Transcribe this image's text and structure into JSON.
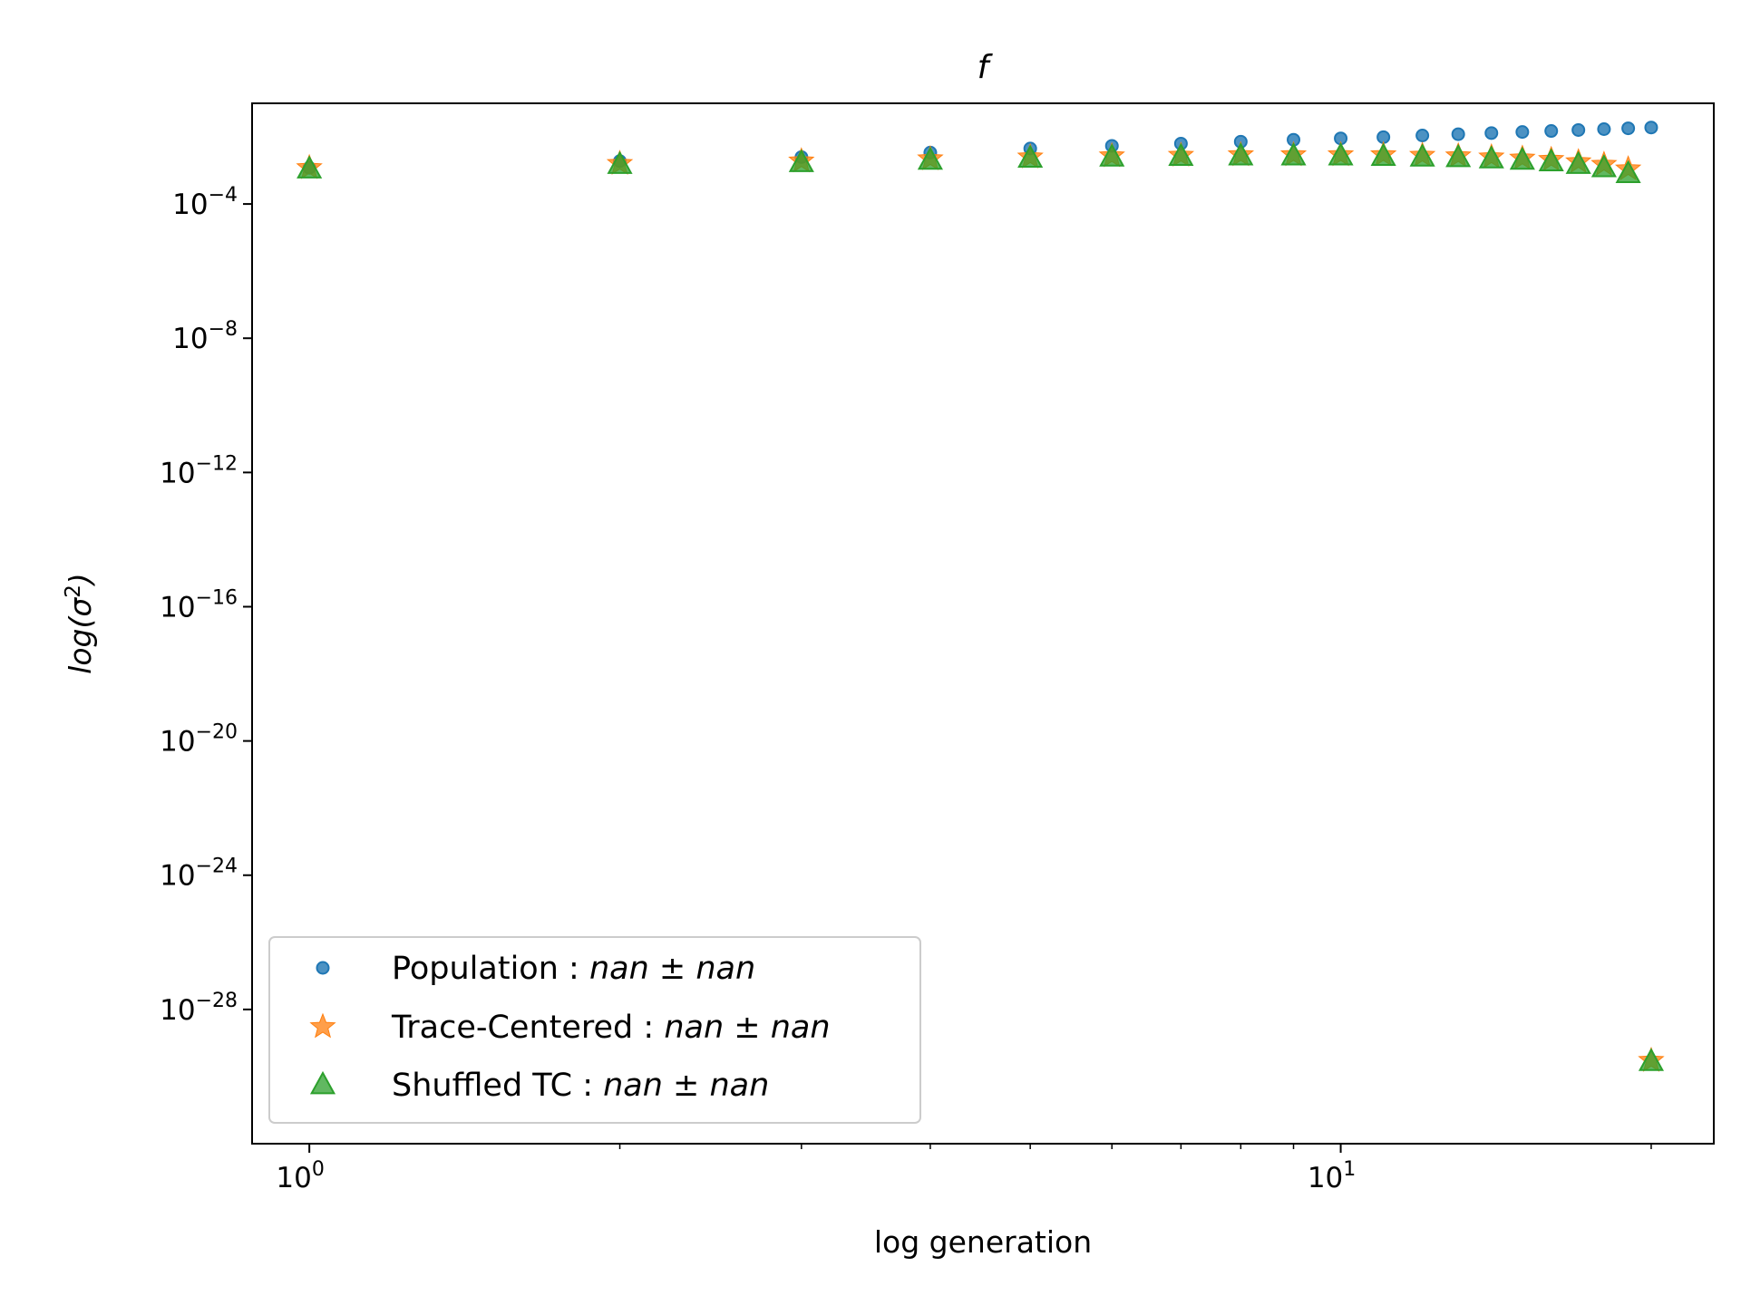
{
  "chart_data": {
    "type": "scatter",
    "title": "f",
    "xlabel": "log generation",
    "ylabel": "log(σ²)",
    "xscale": "log",
    "yscale": "log",
    "xlim": [
      0.88,
      23
    ],
    "ylim": [
      1e-32,
      0.1
    ],
    "x_ticks": [
      {
        "base": "10",
        "exp": "0",
        "value": 1
      },
      {
        "base": "10",
        "exp": "1",
        "value": 10
      }
    ],
    "y_ticks": [
      {
        "base": "10",
        "exp": "−4",
        "value": 0.0001
      },
      {
        "base": "10",
        "exp": "−8",
        "value": 1e-08
      },
      {
        "base": "10",
        "exp": "−12",
        "value": 1e-12
      },
      {
        "base": "10",
        "exp": "−16",
        "value": 1e-16
      },
      {
        "base": "10",
        "exp": "−20",
        "value": 1e-20
      },
      {
        "base": "10",
        "exp": "−24",
        "value": 1e-24
      },
      {
        "base": "10",
        "exp": "−28",
        "value": 1e-28
      }
    ],
    "grid": false,
    "legend_position": "lower-left",
    "x": [
      1,
      2,
      3,
      4,
      5,
      6,
      7,
      8,
      9,
      10,
      11,
      12,
      13,
      14,
      15,
      16,
      17,
      18,
      19,
      20
    ],
    "series": [
      {
        "name": "Population",
        "marker": "circle",
        "color": "#1f77b4",
        "values": [
          0.0012,
          0.0019,
          0.0025,
          0.0034,
          0.0045,
          0.0054,
          0.0063,
          0.0072,
          0.0082,
          0.009,
          0.0098,
          0.011,
          0.012,
          0.013,
          0.014,
          0.015,
          0.016,
          0.017,
          0.018,
          0.019
        ]
      },
      {
        "name": "Trace-Centered",
        "marker": "star",
        "color": "#ff7f0e",
        "values": [
          0.0012,
          0.0016,
          0.0019,
          0.0022,
          0.0025,
          0.0027,
          0.0028,
          0.0029,
          0.0029,
          0.0029,
          0.0029,
          0.0028,
          0.0027,
          0.0025,
          0.0023,
          0.0021,
          0.0018,
          0.0015,
          0.0011,
          3e-30
        ]
      },
      {
        "name": "Shuffled TC",
        "marker": "triangle",
        "color": "#2ca02c",
        "values": [
          0.0011,
          0.0015,
          0.0017,
          0.002,
          0.0023,
          0.0025,
          0.0026,
          0.0027,
          0.0027,
          0.0027,
          0.0026,
          0.0025,
          0.0024,
          0.0022,
          0.002,
          0.0018,
          0.0015,
          0.0012,
          0.0008,
          2.8e-30
        ]
      }
    ],
    "legend": [
      {
        "label": "Population",
        "stat": "nan ± nan"
      },
      {
        "label": "Trace-Centered",
        "stat": "nan ± nan"
      },
      {
        "label": "Shuffled TC",
        "stat": "nan ± nan"
      }
    ]
  }
}
